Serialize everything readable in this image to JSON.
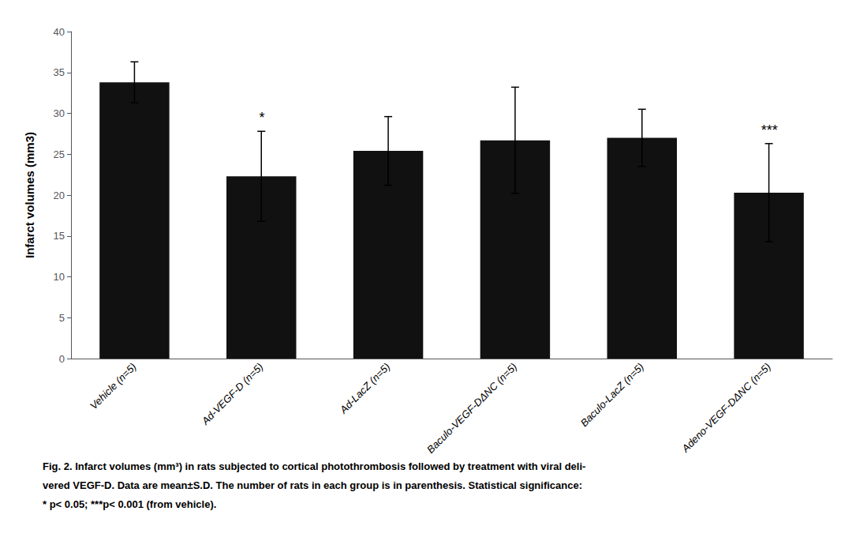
{
  "chart_data": {
    "type": "bar",
    "categories": [
      "Vehicle (n=5)",
      "Ad-VEGF-D (n=5)",
      "Ad-LacZ (n=5)",
      "Baculo-VEGF-DΔΝC (n=5)",
      "Baculo-LacZ (n=5)",
      "Adeno-VEGF-DΔΝC (n=5)"
    ],
    "values": [
      33.8,
      22.3,
      25.4,
      26.7,
      27.0,
      20.3
    ],
    "errors": [
      2.5,
      5.5,
      4.2,
      6.5,
      3.5,
      6.0
    ],
    "color": "#111111",
    "ylabel": "Infarct volumes (mm3)",
    "ylim": [
      0,
      40
    ],
    "yticks": [
      0,
      5,
      10,
      15,
      20,
      25,
      30,
      35,
      40
    ],
    "grid": false,
    "annotations": [
      {
        "category": "Ad-VEGF-D (n=5)",
        "text": "*"
      },
      {
        "category": "Adeno-VEGF-DΔΝC (n=5)",
        "text": "***"
      }
    ],
    "caption": [
      "Fig. 2. Infarct volumes (mm³) in rats subjected to cortical photothrombosis followed by treatment with viral deli-",
      "vered VEGF-D. Data are mean±S.D. The number of rats in each group is in parenthesis. Statistical significance:",
      "* p< 0.05; ***p< 0.001 (from vehicle)."
    ]
  }
}
